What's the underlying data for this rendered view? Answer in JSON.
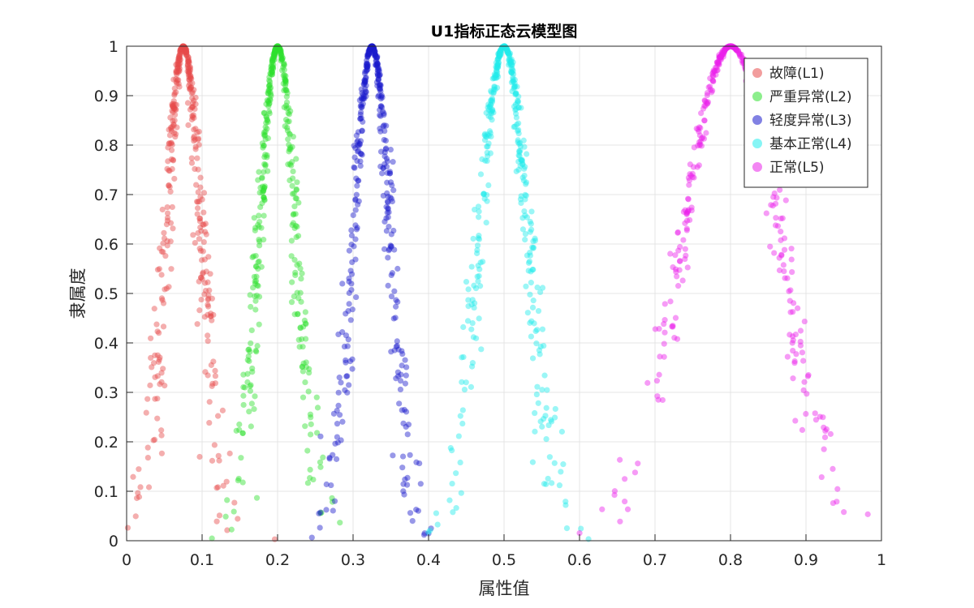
{
  "chart_data": {
    "type": "scatter",
    "title": "U1指标正态云模型图",
    "xlabel": "属性值",
    "ylabel": "隶属度",
    "xlim": [
      0,
      1
    ],
    "ylim": [
      0,
      1
    ],
    "xticks": [
      "0",
      "0.1",
      "0.2",
      "0.3",
      "0.4",
      "0.5",
      "0.6",
      "0.7",
      "0.8",
      "0.9",
      "1"
    ],
    "yticks": [
      "0",
      "0.1",
      "0.2",
      "0.3",
      "0.4",
      "0.5",
      "0.6",
      "0.7",
      "0.8",
      "0.9",
      "1"
    ],
    "grid": true,
    "legend_position": "top-right",
    "series": [
      {
        "name": "故障(L1)",
        "color": "#e74c4c",
        "Ex": 0.075,
        "En": 0.025,
        "He": 0.005,
        "drops": 400
      },
      {
        "name": "严重异常(L2)",
        "color": "#2ee02e",
        "Ex": 0.2,
        "En": 0.025,
        "He": 0.004,
        "drops": 400
      },
      {
        "name": "轻度异常(L3)",
        "color": "#1a1acc",
        "Ex": 0.325,
        "En": 0.025,
        "He": 0.004,
        "drops": 400
      },
      {
        "name": "基本正常(L4)",
        "color": "#22ecec",
        "Ex": 0.5,
        "En": 0.033,
        "He": 0.005,
        "drops": 400
      },
      {
        "name": "正常(L5)",
        "color": "#ea22ea",
        "Ex": 0.8,
        "En": 0.065,
        "He": 0.007,
        "drops": 400
      }
    ]
  }
}
